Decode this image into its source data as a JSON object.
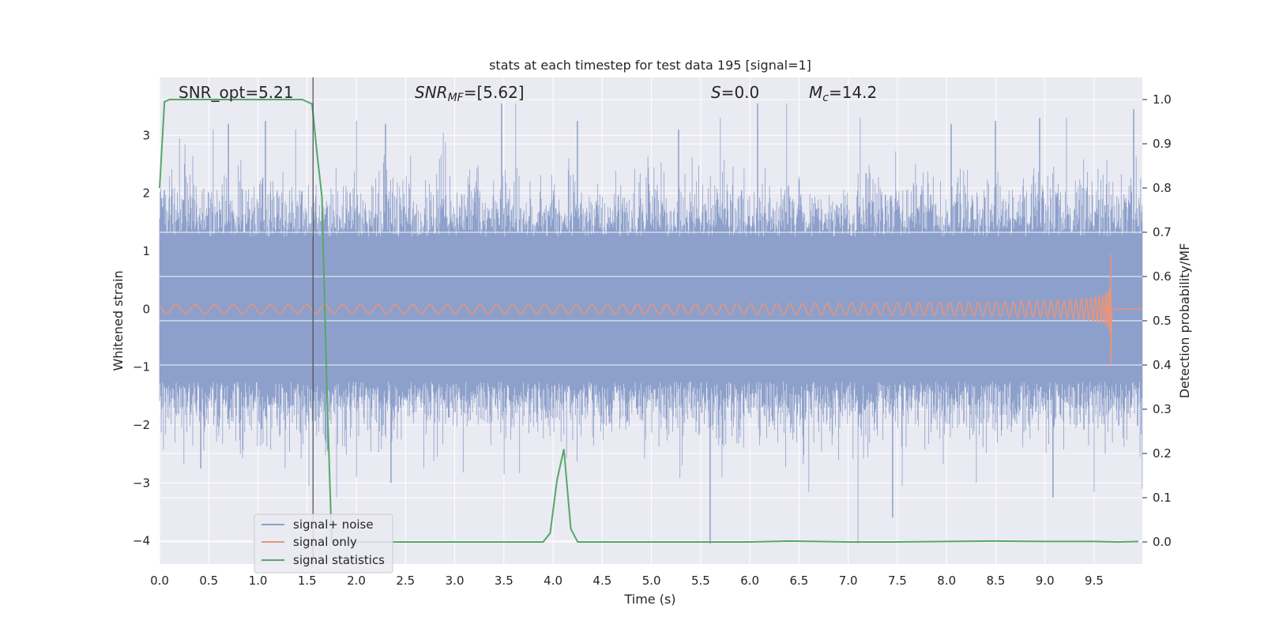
{
  "chart_data": {
    "type": "line",
    "title": "stats at each timestep for test data 195 [signal=1]",
    "xlabel": "Time (s)",
    "ylabel_left": "Whitened strain",
    "ylabel_right": "Detection probability/MF",
    "xlim": [
      0.0,
      9.99
    ],
    "ylim_left": [
      -4.4,
      4.0
    ],
    "ylim_right": [
      -0.05,
      1.05
    ],
    "grid": true,
    "legend_position": "lower-left",
    "x_ticks": [
      "0.0",
      "0.5",
      "1.0",
      "1.5",
      "2.0",
      "2.5",
      "3.0",
      "3.5",
      "4.0",
      "4.5",
      "5.0",
      "5.5",
      "6.0",
      "6.5",
      "7.0",
      "7.5",
      "8.0",
      "8.5",
      "9.0",
      "9.5"
    ],
    "y_left_ticks": [
      "3",
      "2",
      "1",
      "0",
      "−1",
      "−2",
      "−3",
      "−4"
    ],
    "y_right_ticks": [
      "1.0",
      "0.9",
      "0.8",
      "0.7",
      "0.6",
      "0.5",
      "0.4",
      "0.3",
      "0.2",
      "0.1",
      "0.0"
    ],
    "annotations": {
      "snr_opt": "SNR_opt=5.21",
      "snr_mf_label": "SNR",
      "snr_mf_sub": "MF",
      "snr_mf_value": "=[5.62]",
      "s_label": "S",
      "s_value": "=0.0",
      "mc_label": "M",
      "mc_sub": "c",
      "mc_value": "=14.2"
    },
    "vertical_marker_x": 1.56,
    "series": [
      {
        "name": "signal+ noise",
        "color": "#8da0cb",
        "axis": "left",
        "style": "noise",
        "spikes": [
          [
            0.2,
            2.95
          ],
          [
            0.55,
            3.1
          ],
          [
            0.7,
            3.2
          ],
          [
            1.08,
            3.25
          ],
          [
            1.38,
            3.1
          ],
          [
            2.0,
            3.25
          ],
          [
            2.3,
            3.2
          ],
          [
            2.88,
            3.05
          ],
          [
            3.48,
            3.55
          ],
          [
            3.62,
            3.55
          ],
          [
            4.25,
            3.25
          ],
          [
            5.28,
            3.1
          ],
          [
            5.7,
            3.3
          ],
          [
            6.08,
            3.55
          ],
          [
            6.38,
            3.55
          ],
          [
            7.12,
            3.3
          ],
          [
            8.05,
            3.2
          ],
          [
            8.5,
            3.25
          ],
          [
            8.95,
            3.3
          ],
          [
            9.22,
            3.3
          ],
          [
            9.9,
            3.45
          ],
          [
            0.42,
            -2.75
          ],
          [
            1.28,
            -2.75
          ],
          [
            1.52,
            -3.05
          ],
          [
            1.8,
            -3.25
          ],
          [
            2.35,
            -3.0
          ],
          [
            3.5,
            -2.85
          ],
          [
            5.6,
            -4.05
          ],
          [
            5.72,
            -2.9
          ],
          [
            6.6,
            -3.15
          ],
          [
            7.1,
            -4.05
          ],
          [
            7.45,
            -3.6
          ],
          [
            7.55,
            -3.05
          ],
          [
            8.3,
            -3.0
          ],
          [
            9.08,
            -3.25
          ],
          [
            9.5,
            -3.15
          ],
          [
            9.99,
            -3.1
          ]
        ]
      },
      {
        "name": "signal only",
        "color": "#e5957f",
        "axis": "left",
        "style": "chirp",
        "merger_time": 9.67,
        "peak_amplitude": 0.95
      },
      {
        "name": "signal statistics",
        "color": "#55a868",
        "axis": "right",
        "x": [
          0.0,
          0.05,
          0.1,
          0.3,
          0.6,
          0.9,
          1.2,
          1.45,
          1.55,
          1.6,
          1.65,
          1.7,
          1.75,
          1.85,
          2.0,
          2.5,
          3.0,
          3.5,
          3.9,
          3.97,
          4.04,
          4.11,
          4.18,
          4.25,
          4.4,
          5.0,
          5.5,
          6.0,
          6.4,
          6.7,
          7.0,
          7.5,
          8.0,
          8.5,
          9.0,
          9.5,
          9.75,
          9.95
        ],
        "values": [
          0.8,
          0.995,
          1.0,
          1.0,
          1.0,
          1.0,
          1.0,
          1.0,
          0.99,
          0.88,
          0.78,
          0.35,
          0.0,
          0.0,
          0.0,
          0.0,
          0.0,
          0.0,
          0.0,
          0.02,
          0.14,
          0.21,
          0.03,
          0.0,
          0.0,
          0.0,
          0.0,
          0.0,
          0.002,
          0.001,
          0.0,
          0.0,
          0.001,
          0.002,
          0.001,
          0.001,
          0.0,
          0.001
        ]
      }
    ]
  }
}
